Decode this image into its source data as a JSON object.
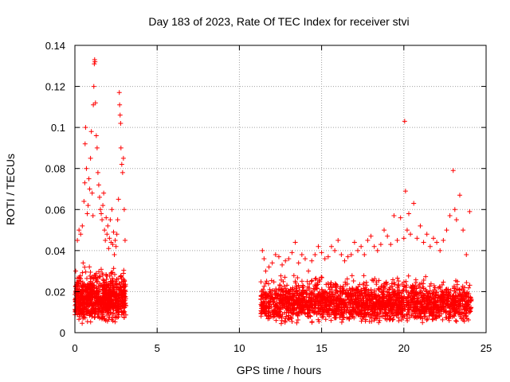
{
  "chart_data": {
    "type": "scatter",
    "title": "Day 183 of 2023, Rate Of TEC Index for receiver stvi",
    "xlabel": "GPS time / hours",
    "ylabel": "ROTI / TECUs",
    "xlim": [
      0,
      25
    ],
    "ylim": [
      0,
      0.14
    ],
    "x_ticks": [
      0,
      5,
      10,
      15,
      20,
      25
    ],
    "x_tick_labels": [
      "0",
      "5",
      "10",
      "15",
      "20",
      "25"
    ],
    "y_ticks": [
      0,
      0.02,
      0.04,
      0.06,
      0.08,
      0.1,
      0.12,
      0.14
    ],
    "y_tick_labels": [
      "0",
      "0.02",
      "0.04",
      "0.06",
      "0.08",
      "0.1",
      "0.12",
      "0.14"
    ],
    "grid": true,
    "marker": "+",
    "color": "#ff0000",
    "grid_color": "#a0a0a0",
    "series": [
      {
        "name": "ROTI",
        "points": [
          [
            0.05,
            0.03
          ],
          [
            0.1,
            0.012
          ],
          [
            0.15,
            0.045
          ],
          [
            0.2,
            0.024
          ],
          [
            0.25,
            0.05
          ],
          [
            0.3,
            0.008
          ],
          [
            0.35,
            0.048
          ],
          [
            0.4,
            0.02
          ],
          [
            0.45,
            0.052
          ],
          [
            0.5,
            0.034
          ],
          [
            0.55,
            0.064
          ],
          [
            0.6,
            0.073
          ],
          [
            0.62,
            0.092
          ],
          [
            0.65,
            0.1
          ],
          [
            0.7,
            0.08
          ],
          [
            0.75,
            0.058
          ],
          [
            0.8,
            0.062
          ],
          [
            0.85,
            0.075
          ],
          [
            0.9,
            0.07
          ],
          [
            0.95,
            0.085
          ],
          [
            1.0,
            0.098
          ],
          [
            1.05,
            0.068
          ],
          [
            1.1,
            0.057
          ],
          [
            1.12,
            0.111
          ],
          [
            1.15,
            0.12
          ],
          [
            1.18,
            0.131
          ],
          [
            1.2,
            0.133
          ],
          [
            1.22,
            0.132
          ],
          [
            1.25,
            0.112
          ],
          [
            1.3,
            0.096
          ],
          [
            1.35,
            0.09
          ],
          [
            1.4,
            0.078
          ],
          [
            1.45,
            0.072
          ],
          [
            1.5,
            0.066
          ],
          [
            1.55,
            0.06
          ],
          [
            1.6,
            0.058
          ],
          [
            1.65,
            0.055
          ],
          [
            1.7,
            0.062
          ],
          [
            1.75,
            0.068
          ],
          [
            1.8,
            0.05
          ],
          [
            1.85,
            0.045
          ],
          [
            1.9,
            0.056
          ],
          [
            1.95,
            0.048
          ],
          [
            2.0,
            0.052
          ],
          [
            2.05,
            0.041
          ],
          [
            2.1,
            0.046
          ],
          [
            2.15,
            0.055
          ],
          [
            2.2,
            0.044
          ],
          [
            2.25,
            0.06
          ],
          [
            2.3,
            0.043
          ],
          [
            2.35,
            0.049
          ],
          [
            2.4,
            0.038
          ],
          [
            2.45,
            0.045
          ],
          [
            2.5,
            0.042
          ],
          [
            2.55,
            0.048
          ],
          [
            2.6,
            0.055
          ],
          [
            2.65,
            0.065
          ],
          [
            2.7,
            0.117
          ],
          [
            2.72,
            0.111
          ],
          [
            2.75,
            0.106
          ],
          [
            2.78,
            0.102
          ],
          [
            2.8,
            0.09
          ],
          [
            2.85,
            0.082
          ],
          [
            2.9,
            0.078
          ],
          [
            2.95,
            0.085
          ],
          [
            3.0,
            0.06
          ],
          [
            3.05,
            0.045
          ],
          [
            11.4,
            0.04
          ],
          [
            11.5,
            0.036
          ],
          [
            11.6,
            0.03
          ],
          [
            11.8,
            0.032
          ],
          [
            12.0,
            0.034
          ],
          [
            12.2,
            0.038
          ],
          [
            12.4,
            0.037
          ],
          [
            12.6,
            0.033
          ],
          [
            12.8,
            0.035
          ],
          [
            13.0,
            0.036
          ],
          [
            13.2,
            0.039
          ],
          [
            13.4,
            0.044
          ],
          [
            13.6,
            0.034
          ],
          [
            13.8,
            0.038
          ],
          [
            14.0,
            0.036
          ],
          [
            14.2,
            0.03
          ],
          [
            14.4,
            0.035
          ],
          [
            14.6,
            0.038
          ],
          [
            14.8,
            0.042
          ],
          [
            15.0,
            0.039
          ],
          [
            15.2,
            0.036
          ],
          [
            15.4,
            0.037
          ],
          [
            15.6,
            0.042
          ],
          [
            15.8,
            0.04
          ],
          [
            16.0,
            0.045
          ],
          [
            16.2,
            0.038
          ],
          [
            16.4,
            0.035
          ],
          [
            16.6,
            0.037
          ],
          [
            16.8,
            0.038
          ],
          [
            17.0,
            0.044
          ],
          [
            17.2,
            0.04
          ],
          [
            17.4,
            0.042
          ],
          [
            17.6,
            0.038
          ],
          [
            17.8,
            0.045
          ],
          [
            18.0,
            0.047
          ],
          [
            18.2,
            0.042
          ],
          [
            18.4,
            0.04
          ],
          [
            18.6,
            0.043
          ],
          [
            18.8,
            0.05
          ],
          [
            19.0,
            0.047
          ],
          [
            19.2,
            0.043
          ],
          [
            19.4,
            0.057
          ],
          [
            19.6,
            0.045
          ],
          [
            19.8,
            0.056
          ],
          [
            20.0,
            0.046
          ],
          [
            20.05,
            0.103
          ],
          [
            20.1,
            0.069
          ],
          [
            20.2,
            0.05
          ],
          [
            20.3,
            0.058
          ],
          [
            20.4,
            0.048
          ],
          [
            20.6,
            0.063
          ],
          [
            20.8,
            0.046
          ],
          [
            21.0,
            0.052
          ],
          [
            21.2,
            0.044
          ],
          [
            21.4,
            0.048
          ],
          [
            21.6,
            0.042
          ],
          [
            21.8,
            0.046
          ],
          [
            22.0,
            0.044
          ],
          [
            22.2,
            0.04
          ],
          [
            22.4,
            0.045
          ],
          [
            22.6,
            0.05
          ],
          [
            22.8,
            0.057
          ],
          [
            23.0,
            0.079
          ],
          [
            23.1,
            0.06
          ],
          [
            23.2,
            0.055
          ],
          [
            23.4,
            0.067
          ],
          [
            23.6,
            0.05
          ],
          [
            23.8,
            0.038
          ],
          [
            24.0,
            0.059
          ]
        ]
      }
    ],
    "density_bands": [
      {
        "x_range": [
          0,
          3.1
        ],
        "y_range": [
          0.004,
          0.035
        ],
        "count": 900,
        "seed": 1
      },
      {
        "x_range": [
          11.3,
          24.1
        ],
        "y_range": [
          0.004,
          0.03
        ],
        "count": 2200,
        "seed": 7
      }
    ]
  }
}
